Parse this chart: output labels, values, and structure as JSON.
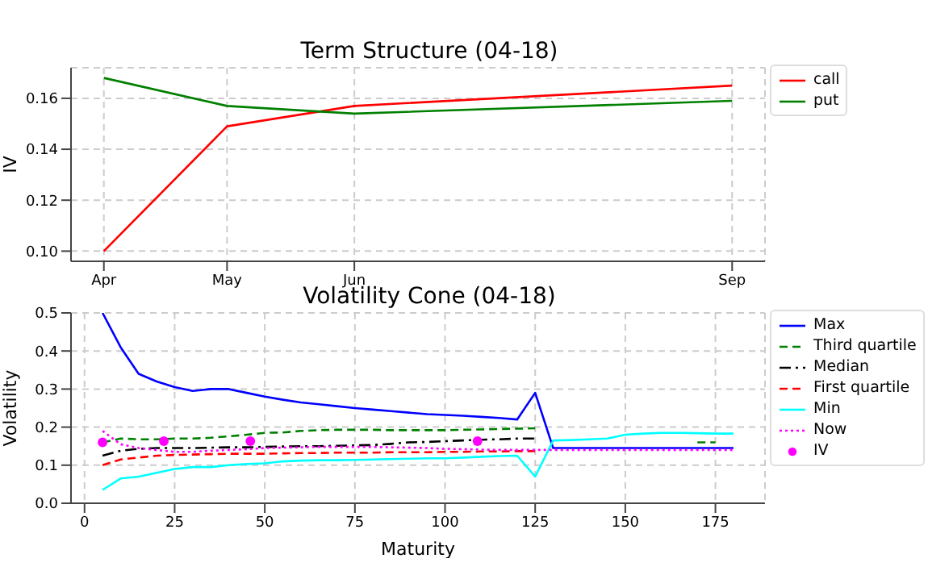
{
  "chart_data": [
    {
      "type": "line",
      "title": "Term Structure (04-18)",
      "ylabel": "IV",
      "x": [
        "--04-01",
        "--05-01",
        "--06-01",
        "--09-01"
      ],
      "xlim": [
        "--03-24",
        "--09-09"
      ],
      "xticks": [
        {
          "value": "--04-01",
          "label": "Apr"
        },
        {
          "value": "--05-01",
          "label": "May"
        },
        {
          "value": "--06-01",
          "label": "Jun"
        },
        {
          "value": "--09-01",
          "label": "Sep"
        }
      ],
      "ylim": [
        0.096,
        0.172
      ],
      "yticks": [
        {
          "value": 0.1,
          "label": "0.10"
        },
        {
          "value": 0.12,
          "label": "0.12"
        },
        {
          "value": 0.14,
          "label": "0.14"
        },
        {
          "value": 0.16,
          "label": "0.16"
        }
      ],
      "series": [
        {
          "name": "call",
          "color": "#ff0000",
          "values": [
            0.1,
            0.149,
            0.157,
            0.165
          ]
        },
        {
          "name": "put",
          "color": "#008000",
          "values": [
            0.168,
            0.157,
            0.154,
            0.159
          ]
        }
      ],
      "grid": true,
      "legend": "right",
      "marker": "none",
      "line_style": "solid"
    },
    {
      "type": "line",
      "title": "Volatility Cone (04-18)",
      "xlabel": "Maturity",
      "ylabel": "Volatility",
      "x": [
        5,
        10,
        15,
        20,
        25,
        30,
        35,
        40,
        45,
        50,
        55,
        60,
        65,
        70,
        75,
        80,
        85,
        90,
        95,
        100,
        105,
        110,
        115,
        120,
        125,
        130,
        135,
        140,
        145,
        150,
        155,
        160,
        165,
        170,
        175,
        180
      ],
      "xlim": [
        -3.75,
        188.75
      ],
      "xticks": [
        0,
        25,
        50,
        75,
        100,
        125,
        150,
        175
      ],
      "ylim": [
        0,
        0.5
      ],
      "yticks": [
        {
          "value": 0,
          "label": "0.0"
        },
        {
          "value": 0.1,
          "label": "0.1"
        },
        {
          "value": 0.2,
          "label": "0.2"
        },
        {
          "value": 0.3,
          "label": "0.3"
        },
        {
          "value": 0.4,
          "label": "0.4"
        },
        {
          "value": 0.5,
          "label": "0.5"
        }
      ],
      "series": [
        {
          "name": "Max",
          "color": "#0000ff",
          "line_style": "solid",
          "values": [
            0.5,
            0.41,
            0.34,
            0.32,
            0.305,
            0.295,
            0.3,
            0.3,
            0.29,
            0.28,
            0.272,
            0.265,
            0.26,
            0.255,
            0.25,
            0.246,
            0.242,
            0.238,
            0.234,
            0.232,
            0.23,
            0.227,
            0.224,
            0.22,
            0.29,
            0.145,
            0.145,
            0.145,
            0.145,
            0.145,
            0.145,
            0.145,
            0.145,
            0.145,
            0.145,
            0.145
          ]
        },
        {
          "name": "Third quartile",
          "color": "#008000",
          "line_style": "dashed",
          "values": [
            0.16,
            0.17,
            0.168,
            0.168,
            0.17,
            0.17,
            0.172,
            0.176,
            0.18,
            0.185,
            0.186,
            0.19,
            0.192,
            0.193,
            0.193,
            0.193,
            0.192,
            0.192,
            0.192,
            0.192,
            0.193,
            0.194,
            0.195,
            0.196,
            0.197,
            null,
            null,
            null,
            null,
            null,
            null,
            null,
            null,
            0.16,
            0.16,
            null
          ]
        },
        {
          "name": "Median",
          "color": "#000000",
          "line_style": "dashdot",
          "values": [
            0.125,
            0.138,
            0.143,
            0.145,
            0.145,
            0.145,
            0.146,
            0.147,
            0.147,
            0.148,
            0.149,
            0.15,
            0.15,
            0.151,
            0.152,
            0.153,
            0.156,
            0.16,
            0.161,
            0.163,
            0.165,
            0.167,
            0.168,
            0.17,
            0.17,
            null,
            null,
            null,
            null,
            null,
            null,
            null,
            null,
            null,
            null,
            null
          ]
        },
        {
          "name": "First quartile",
          "color": "#ff0000",
          "line_style": "dashed",
          "values": [
            0.1,
            0.115,
            0.12,
            0.125,
            0.127,
            0.128,
            0.129,
            0.13,
            0.13,
            0.13,
            0.131,
            0.132,
            0.132,
            0.133,
            0.133,
            0.133,
            0.134,
            0.134,
            0.134,
            0.135,
            0.135,
            0.136,
            0.136,
            0.137,
            0.137,
            null,
            null,
            null,
            null,
            null,
            null,
            null,
            null,
            null,
            null,
            null
          ]
        },
        {
          "name": "Min",
          "color": "#00ffff",
          "line_style": "solid",
          "values": [
            0.035,
            0.065,
            0.07,
            0.08,
            0.09,
            0.095,
            0.095,
            0.1,
            0.103,
            0.105,
            0.11,
            0.112,
            0.113,
            0.113,
            0.114,
            0.115,
            0.116,
            0.117,
            0.118,
            0.118,
            0.12,
            0.122,
            0.124,
            0.125,
            0.07,
            0.165,
            0.166,
            0.168,
            0.17,
            0.18,
            0.183,
            0.185,
            0.185,
            0.184,
            0.183,
            0.183
          ]
        },
        {
          "name": "Now",
          "color": "#ff00ff",
          "line_style": "dotted",
          "values": [
            0.19,
            0.155,
            0.145,
            0.14,
            0.135,
            0.135,
            0.138,
            0.14,
            0.142,
            0.145,
            0.146,
            0.147,
            0.148,
            0.148,
            0.148,
            0.148,
            0.147,
            0.146,
            0.145,
            0.143,
            0.142,
            0.141,
            0.14,
            0.14,
            0.14,
            0.14,
            0.14,
            0.14,
            0.14,
            0.14,
            0.14,
            0.14,
            0.14,
            0.14,
            0.14,
            0.14
          ]
        },
        {
          "name": "IV",
          "type": "scatter",
          "marker": "circle",
          "color": "#ff00ff",
          "x": [
            5,
            22,
            46,
            109
          ],
          "values": [
            0.16,
            0.163,
            0.163,
            0.163
          ]
        }
      ],
      "grid": true,
      "legend": "right",
      "marker": "none"
    }
  ]
}
